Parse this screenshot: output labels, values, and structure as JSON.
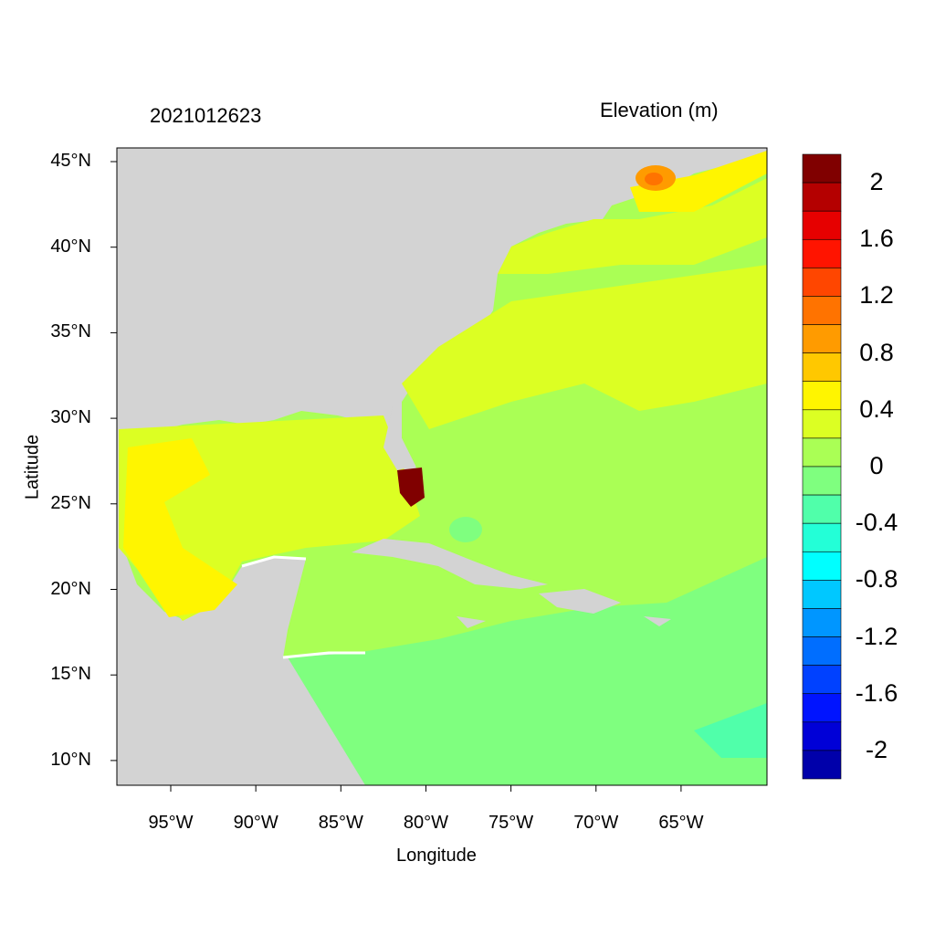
{
  "header": {
    "timestamp": "2021012623",
    "variable": "Elevation (m)"
  },
  "axes": {
    "xlabel": "Longitude",
    "ylabel": "Latitude",
    "xticks": [
      "95°W",
      "90°W",
      "85°W",
      "80°W",
      "75°W",
      "70°W",
      "65°W"
    ],
    "xtick_lons": [
      -95,
      -90,
      -85,
      -80,
      -75,
      -70,
      -65
    ],
    "yticks": [
      "45°N",
      "40°N",
      "35°N",
      "30°N",
      "25°N",
      "20°N",
      "15°N",
      "10°N"
    ],
    "ytick_lats": [
      45,
      40,
      35,
      30,
      25,
      20,
      15,
      10
    ],
    "lon_range": [
      -98.2,
      -60
    ],
    "lat_range": [
      8.6,
      45.8
    ]
  },
  "colorbar": {
    "labels": [
      "2",
      "1.6",
      "1.2",
      "0.8",
      "0.4",
      "0",
      "-0.4",
      "-0.8",
      "-1.2",
      "-1.6",
      "-2"
    ],
    "levels": [
      2.0,
      1.8,
      1.6,
      1.4,
      1.2,
      1.0,
      0.8,
      0.6,
      0.4,
      0.2,
      0.0,
      -0.2,
      -0.4,
      -0.6,
      -0.8,
      -1.0,
      -1.2,
      -1.4,
      -1.6,
      -1.8,
      -2.0
    ],
    "colors": [
      "#800000",
      "#B40000",
      "#E60000",
      "#FF1400",
      "#FF4600",
      "#FF7300",
      "#FF9B00",
      "#FFC800",
      "#FFF500",
      "#DCFF23",
      "#AAFF55",
      "#7FFF7F",
      "#50FFAA",
      "#23FFD7",
      "#00FFFF",
      "#00C8FF",
      "#0096FF",
      "#006EFF",
      "#0041FF",
      "#0014FF",
      "#0000D7",
      "#0000AA"
    ]
  },
  "colors": {
    "land": "#D3D3D3",
    "missing": "#FFFFFF"
  }
}
